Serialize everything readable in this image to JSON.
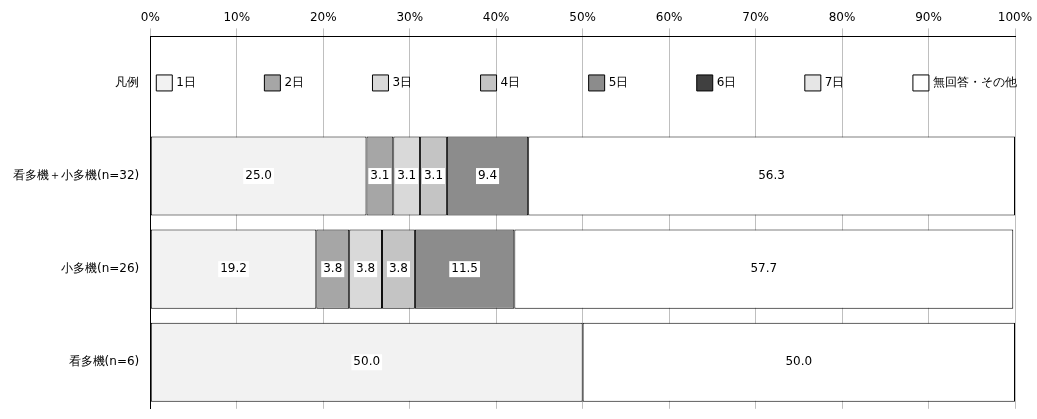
{
  "chart_data": {
    "type": "bar",
    "orientation": "horizontal",
    "stacked": true,
    "categories": [
      "凡例",
      "看多機＋小多機(n=32)",
      "小多機(n=26)",
      "看多機(n=6)"
    ],
    "legend": "top",
    "xlim": [
      0,
      100
    ],
    "xticks": [
      {
        "value": 0,
        "label": "0%"
      },
      {
        "value": 10,
        "label": "10%"
      },
      {
        "value": 20,
        "label": "20%"
      },
      {
        "value": 30,
        "label": "30%"
      },
      {
        "value": 40,
        "label": "40%"
      },
      {
        "value": 50,
        "label": "50%"
      },
      {
        "value": 60,
        "label": "60%"
      },
      {
        "value": 70,
        "label": "70%"
      },
      {
        "value": 80,
        "label": "80%"
      },
      {
        "value": 90,
        "label": "90%"
      },
      {
        "value": 100,
        "label": "100%"
      }
    ],
    "grid": "x",
    "series": [
      {
        "name": "1日",
        "color": "#f2f2f2",
        "values": [
          null,
          25.0,
          19.2,
          50.0
        ],
        "value_labels": [
          null,
          "25.0",
          "19.2",
          "50.0"
        ]
      },
      {
        "name": "2日",
        "color": "#a6a6a6",
        "values": [
          null,
          3.1,
          3.8,
          null
        ],
        "value_labels": [
          null,
          "3.1",
          "3.8",
          null
        ]
      },
      {
        "name": "3日",
        "color": "#d9d9d9",
        "values": [
          null,
          3.1,
          3.8,
          null
        ],
        "value_labels": [
          null,
          "3.1",
          "3.8",
          null
        ]
      },
      {
        "name": "4日",
        "color": "#c4c4c4",
        "values": [
          null,
          3.1,
          3.8,
          null
        ],
        "value_labels": [
          null,
          "3.1",
          "3.8",
          null
        ]
      },
      {
        "name": "5日",
        "color": "#8c8c8c",
        "values": [
          null,
          9.4,
          11.5,
          null
        ],
        "value_labels": [
          null,
          "9.4",
          "11.5",
          null
        ]
      },
      {
        "name": "6日",
        "color": "#404040",
        "values": [
          null,
          null,
          null,
          null
        ]
      },
      {
        "name": "7日",
        "color": "#e6e6e6",
        "values": [
          null,
          null,
          null,
          null
        ]
      },
      {
        "name": "無回答・その他",
        "color": "#ffffff",
        "values": [
          null,
          56.3,
          57.7,
          50.0
        ],
        "value_labels": [
          null,
          "56.3",
          "57.7",
          "50.0"
        ]
      }
    ]
  }
}
